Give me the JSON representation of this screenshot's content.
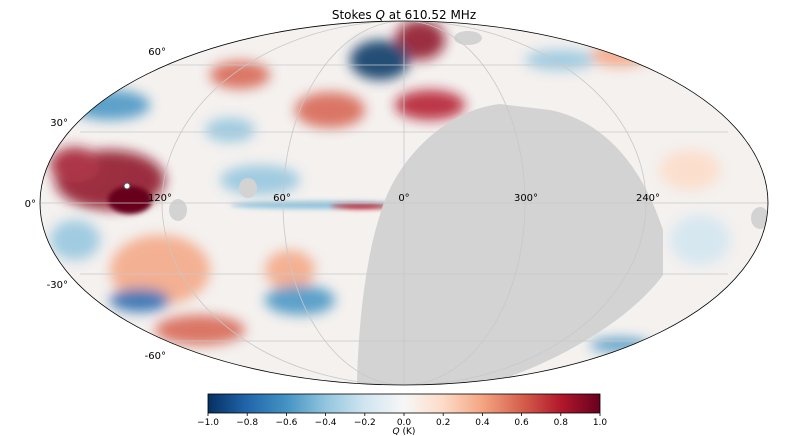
{
  "figure": {
    "title_prefix": "Stokes ",
    "title_var": "Q",
    "title_suffix": " at 610.52 MHz",
    "projection": "Mollweide",
    "masked_region_color": "#d3d3d3",
    "graticule_color": "#c8c8c8"
  },
  "longitude_labels": [
    "120°",
    "60°",
    "0°",
    "300°",
    "240°"
  ],
  "latitude_labels": [
    "60°",
    "30°",
    "0°",
    "-30°",
    "-60°"
  ],
  "colorbar": {
    "colormap": "RdBu_r",
    "colors": [
      "#053061",
      "#2166ac",
      "#4393c3",
      "#92c5de",
      "#d1e5f0",
      "#f7f7f7",
      "#fddbc7",
      "#f4a582",
      "#d6604d",
      "#b2182b",
      "#67001f"
    ],
    "min": -1.0,
    "max": 1.0,
    "ticks": [
      "−1.0",
      "−0.8",
      "−0.6",
      "−0.4",
      "−0.2",
      "0.0",
      "0.2",
      "0.4",
      "0.6",
      "0.8",
      "1.0"
    ],
    "label_var": "Q",
    "label_unit": " (K)"
  }
}
